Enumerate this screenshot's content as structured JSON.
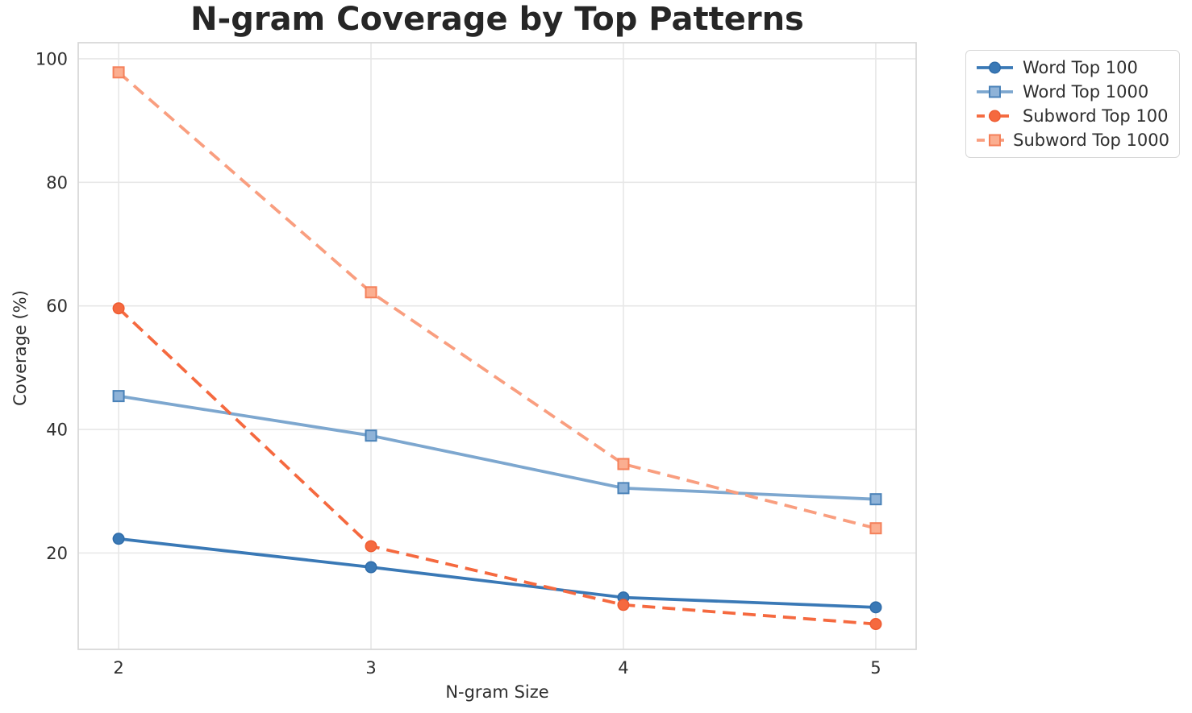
{
  "chart_data": {
    "type": "line",
    "title": "N-gram Coverage by Top Patterns",
    "xlabel": "N-gram Size",
    "ylabel": "Coverage (%)",
    "x": [
      2,
      3,
      4,
      5
    ],
    "x_tick_labels": [
      "2",
      "3",
      "4",
      "5"
    ],
    "y_ticks": [
      20,
      40,
      60,
      80,
      100
    ],
    "y_tick_labels": [
      "20",
      "40",
      "60",
      "80",
      "100"
    ],
    "xlim": [
      1.84,
      5.16
    ],
    "ylim": [
      4.4,
      102.6
    ],
    "grid": true,
    "legend_position": "outside-top-right",
    "series": [
      {
        "name": "Word Top 100",
        "values": [
          22.3,
          17.7,
          12.8,
          11.2
        ],
        "color": "#3a79b6",
        "line_style": "solid",
        "marker": "circle",
        "marker_fill": "#3a79b6",
        "marker_edge": "#2e6ba8"
      },
      {
        "name": "Word Top 1000",
        "values": [
          45.4,
          39.0,
          30.5,
          28.7
        ],
        "color": "#7da7cf",
        "line_style": "solid",
        "marker": "square",
        "marker_fill": "#8fb3d8",
        "marker_edge": "#4a82b8"
      },
      {
        "name": "Subword Top 100",
        "values": [
          59.6,
          21.1,
          11.6,
          8.5
        ],
        "color": "#f5693f",
        "line_style": "dashed",
        "marker": "circle",
        "marker_fill": "#f5693f",
        "marker_edge": "#ee5a30"
      },
      {
        "name": "Subword Top 1000",
        "values": [
          97.8,
          62.2,
          34.4,
          24.0
        ],
        "color": "#f99e7f",
        "line_style": "dashed",
        "marker": "square",
        "marker_fill": "#fbae90",
        "marker_edge": "#f4805a"
      }
    ],
    "colors": {
      "grid": "#e7e7e7",
      "spine": "#d9d9d9",
      "title_text": "#262626",
      "tick_text": "#2f2f2f",
      "background": "#ffffff"
    }
  }
}
